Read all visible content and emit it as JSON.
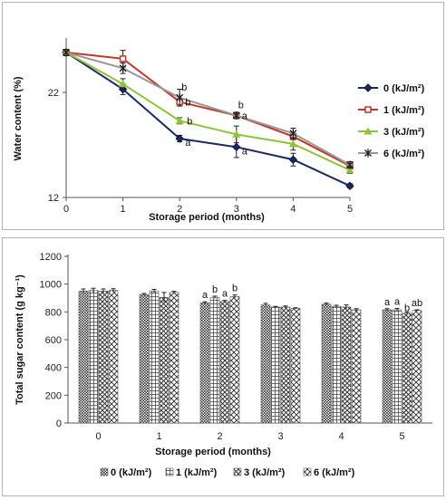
{
  "chart_data": [
    {
      "type": "line",
      "xlabel": "Storage period (months)",
      "ylabel": "Water content (%)",
      "x": [
        0,
        1,
        2,
        3,
        4,
        5
      ],
      "xticks": [
        "0",
        "1",
        "2",
        "3",
        "4",
        "5"
      ],
      "yticks": [
        "12",
        "22"
      ],
      "ylim": [
        12,
        27
      ],
      "grid": false,
      "legend_position": "right",
      "series": [
        {
          "name": "0 (kJ/m²)",
          "values": [
            25.8,
            22.3,
            17.6,
            16.8,
            15.6,
            13.1
          ],
          "errors": [
            0.3,
            0.5,
            0.3,
            1.0,
            0.6,
            0.2
          ],
          "color": "#1b2a63",
          "marker": "diamond",
          "labels": [
            null,
            null,
            "a",
            "a",
            null,
            null
          ]
        },
        {
          "name": "1 (kJ/m²)",
          "values": [
            25.8,
            25.2,
            21.1,
            19.8,
            17.8,
            15.0
          ],
          "errors": [
            0.3,
            0.8,
            0.3,
            0.3,
            0.3,
            0.2
          ],
          "color": "#c0392b",
          "marker": "square",
          "labels": [
            null,
            null,
            "b",
            "a",
            null,
            null
          ]
        },
        {
          "name": "3 (kJ/m²)",
          "values": [
            25.8,
            22.8,
            19.3,
            18.0,
            17.1,
            14.6
          ],
          "errors": [
            0.3,
            0.5,
            0.3,
            0.8,
            0.6,
            0.3
          ],
          "color": "#8fc43a",
          "marker": "triangle",
          "labels": [
            null,
            null,
            "b",
            null,
            null,
            null
          ]
        },
        {
          "name": "6 (kJ/m²)",
          "values": [
            25.8,
            24.3,
            21.5,
            19.8,
            18.1,
            15.1
          ],
          "errors": [
            0.3,
            0.5,
            0.8,
            0.3,
            0.5,
            0.3
          ],
          "color": "#999999",
          "marker": "star",
          "labels": [
            null,
            null,
            "b",
            "b",
            null,
            null
          ]
        }
      ]
    },
    {
      "type": "bar",
      "xlabel": "Storage period (months)",
      "ylabel": "Total sugar content (g kg⁻¹)",
      "categories": [
        "0",
        "1",
        "2",
        "3",
        "4",
        "5"
      ],
      "yticks": [
        "0",
        "200",
        "400",
        "600",
        "800",
        "1000",
        "1200"
      ],
      "ylim": [
        0,
        1200
      ],
      "grid": false,
      "legend_position": "bottom",
      "series": [
        {
          "name": "0 (kJ/m²)",
          "values": [
            950,
            925,
            865,
            850,
            855,
            815
          ],
          "errors": [
            15,
            8,
            8,
            12,
            8,
            8
          ],
          "pattern": "dense",
          "labels": [
            "",
            "",
            "a",
            "",
            "",
            "a"
          ]
        },
        {
          "name": "1 (kJ/m²)",
          "values": [
            955,
            950,
            905,
            835,
            840,
            815
          ],
          "errors": [
            15,
            12,
            8,
            5,
            8,
            10
          ],
          "pattern": "squares",
          "labels": [
            "",
            "",
            "b",
            "",
            "",
            "a"
          ]
        },
        {
          "name": "3 (kJ/m²)",
          "values": [
            950,
            905,
            875,
            835,
            835,
            790
          ],
          "errors": [
            15,
            35,
            8,
            8,
            15,
            10
          ],
          "pattern": "cross",
          "labels": [
            "",
            "",
            "a",
            "",
            "",
            "b"
          ]
        },
        {
          "name": "6 (kJ/m²)",
          "values": [
            955,
            940,
            910,
            825,
            815,
            810
          ],
          "errors": [
            12,
            8,
            12,
            5,
            8,
            5
          ],
          "pattern": "diamond",
          "labels": [
            "",
            "",
            "b",
            "",
            "",
            "ab"
          ]
        }
      ]
    }
  ]
}
